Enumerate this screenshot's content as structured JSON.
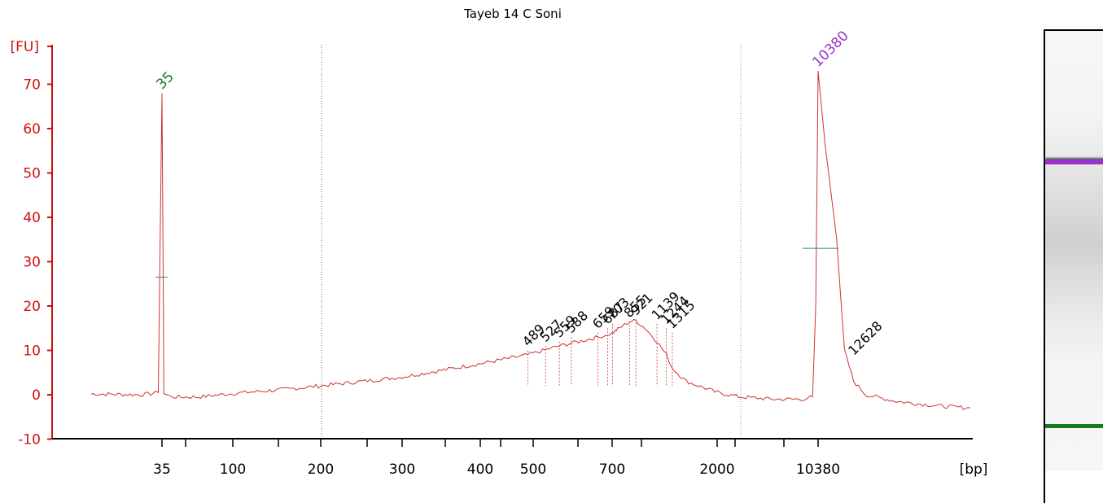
{
  "chart_data": {
    "type": "line",
    "title": "Tayeb 14 C Soni",
    "ylabel": "[FU]",
    "xlabel": "[bp]",
    "ylim": [
      -10,
      75
    ],
    "y_ticks": [
      -10,
      0,
      10,
      20,
      30,
      40,
      50,
      60,
      70
    ],
    "x_tick_labels": [
      "35",
      "100",
      "200",
      "300",
      "400",
      "500",
      "700",
      "2000",
      "10380"
    ],
    "grid": false,
    "colors": {
      "axis": "#d01010",
      "trace": "#cc3333",
      "marker_lower": "#1a7a1a",
      "marker_upper": "#9933cc"
    },
    "marker_labels": [
      {
        "label": "35",
        "x_bp": 35,
        "y": 68,
        "color": "#1a7a1a"
      },
      {
        "label": "10380",
        "x_bp": 10380,
        "y": 73,
        "color": "#9933cc"
      }
    ],
    "peak_labels": [
      {
        "label": "489",
        "x_bp": 489,
        "y": 10
      },
      {
        "label": "527",
        "x_bp": 527,
        "y": 11
      },
      {
        "label": "559",
        "x_bp": 559,
        "y": 12
      },
      {
        "label": "588",
        "x_bp": 588,
        "y": 13
      },
      {
        "label": "659",
        "x_bp": 659,
        "y": 14
      },
      {
        "label": "687",
        "x_bp": 687,
        "y": 15
      },
      {
        "label": "703",
        "x_bp": 703,
        "y": 16
      },
      {
        "label": "855",
        "x_bp": 855,
        "y": 16.5
      },
      {
        "label": "921",
        "x_bp": 921,
        "y": 17
      },
      {
        "label": "1139",
        "x_bp": 1139,
        "y": 16
      },
      {
        "label": "1244",
        "x_bp": 1244,
        "y": 15
      },
      {
        "label": "1315",
        "x_bp": 1315,
        "y": 14
      },
      {
        "label": "12628",
        "x_bp": 12628,
        "y": 8
      }
    ],
    "series": [
      {
        "values": [
          [
            20,
            0.2
          ],
          [
            30,
            0
          ],
          [
            34,
            0.5
          ],
          [
            35,
            68
          ],
          [
            36,
            0.5
          ],
          [
            40,
            -0.5
          ],
          [
            60,
            -0.5
          ],
          [
            100,
            0.3
          ],
          [
            150,
            1.2
          ],
          [
            200,
            2
          ],
          [
            300,
            4
          ],
          [
            400,
            7
          ],
          [
            489,
            9
          ],
          [
            559,
            11
          ],
          [
            659,
            13
          ],
          [
            759,
            15
          ],
          [
            855,
            16.5
          ],
          [
            921,
            16.7
          ],
          [
            1020,
            15
          ],
          [
            1139,
            12
          ],
          [
            1244,
            9
          ],
          [
            1315,
            6
          ],
          [
            1500,
            3
          ],
          [
            2000,
            0.5
          ],
          [
            3000,
            -0.5
          ],
          [
            5000,
            -1
          ],
          [
            8000,
            -1
          ],
          [
            9500,
            -0.5
          ],
          [
            10000,
            20
          ],
          [
            10380,
            73
          ],
          [
            10800,
            56
          ],
          [
            11500,
            35
          ],
          [
            12000,
            10
          ],
          [
            12628,
            3
          ],
          [
            13500,
            0
          ],
          [
            16000,
            -1.5
          ],
          [
            20000,
            -2.5
          ],
          [
            24000,
            -3
          ]
        ]
      }
    ]
  },
  "gel": {
    "upper_marker_color": "#9933cc",
    "lower_marker_color": "#1a7a1a",
    "upper_marker_level": 0.3,
    "lower_marker_level": 0.9
  }
}
